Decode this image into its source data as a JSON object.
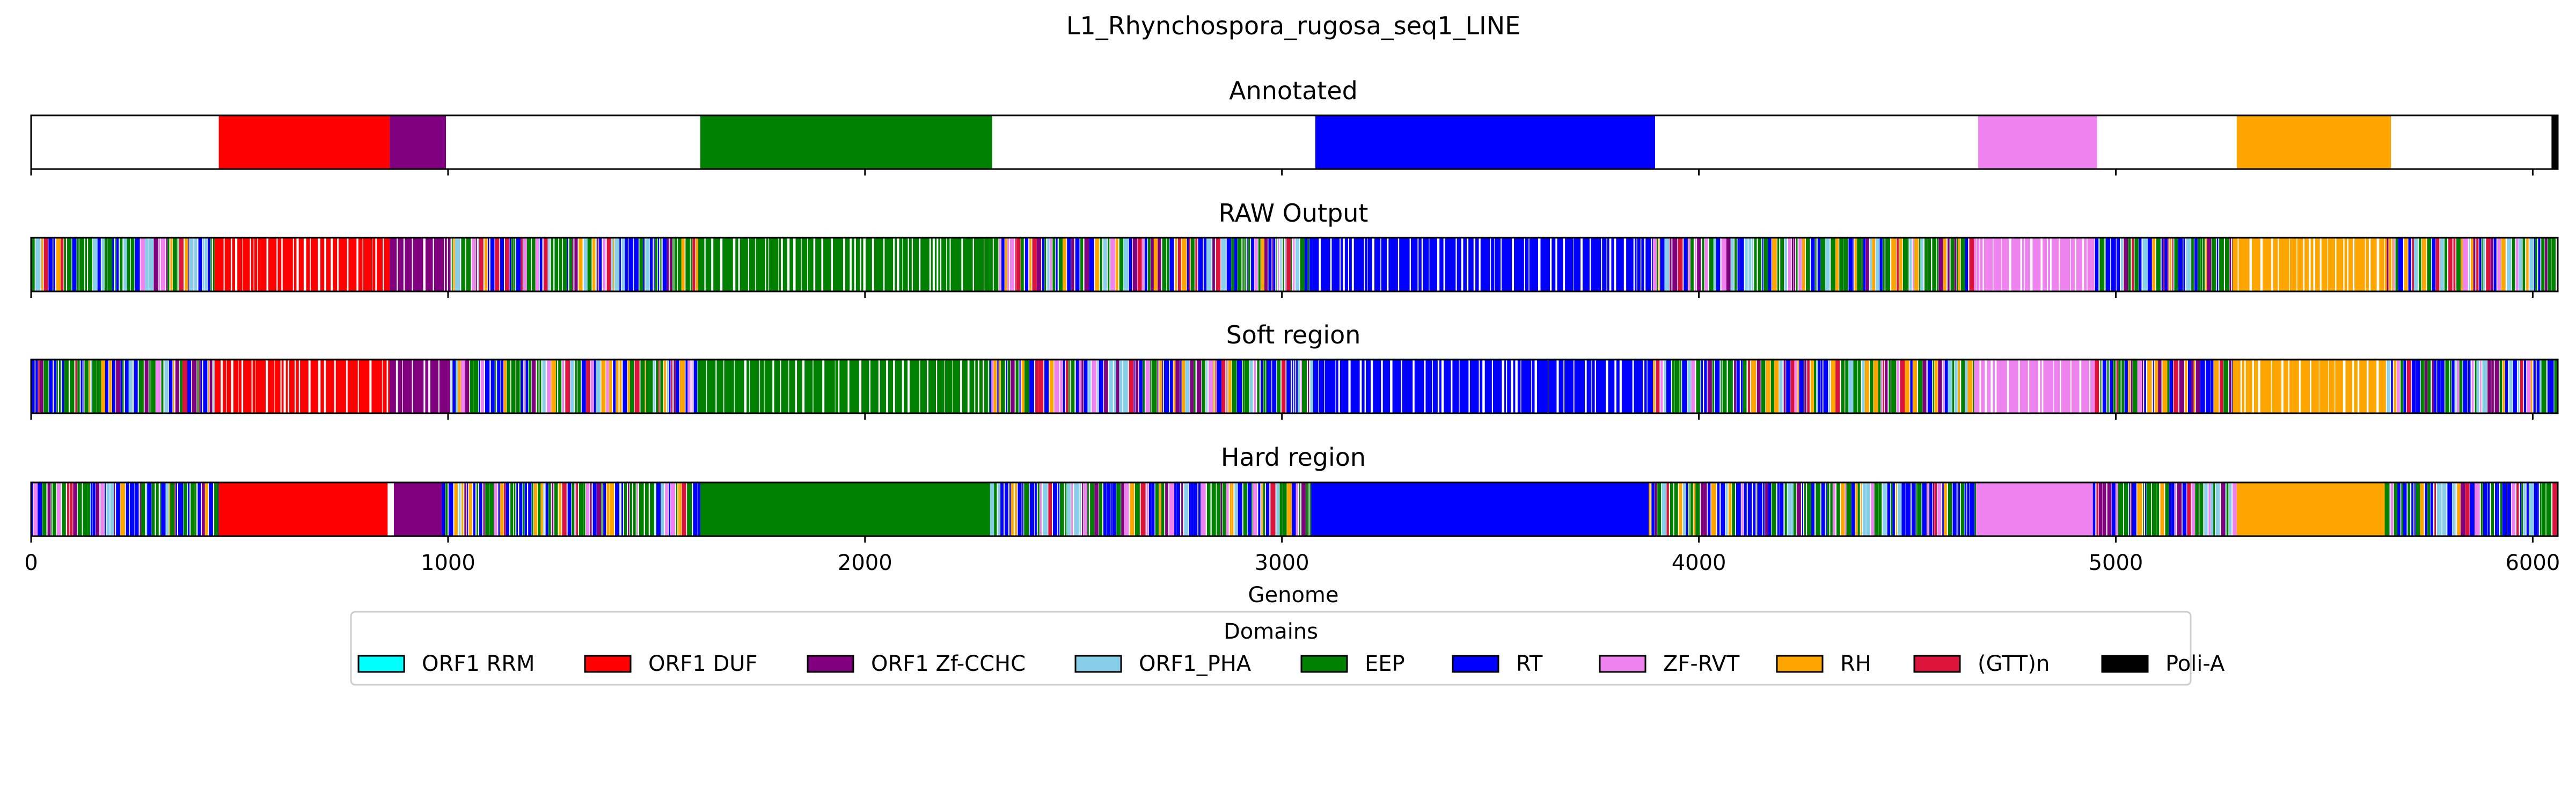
{
  "chart_data": {
    "type": "genome-track",
    "title": "L1_Rhynchospora_rugosa_seq1_LINE",
    "xlabel": "Genome",
    "xlim": [
      0,
      6060
    ],
    "xticks": [
      0,
      1000,
      2000,
      3000,
      4000,
      5000,
      6000
    ],
    "xtick_labels": [
      "0",
      "1000",
      "2000",
      "3000",
      "4000",
      "5000",
      "6000"
    ],
    "grid": false,
    "legend": {
      "title": "Domains",
      "placement": "bottom-center",
      "entries": [
        {
          "label": "ORF1 RRM",
          "color": "#00ffff"
        },
        {
          "label": "ORF1 DUF",
          "color": "#ff0000"
        },
        {
          "label": "ORF1 Zf-CCHC",
          "color": "#800080"
        },
        {
          "label": "ORF1_PHA",
          "color": "#87ceeb"
        },
        {
          "label": "EEP",
          "color": "#008000"
        },
        {
          "label": "RT",
          "color": "#0000ff"
        },
        {
          "label": "ZF-RVT",
          "color": "#ee82ee"
        },
        {
          "label": "RH",
          "color": "#ffa500"
        },
        {
          "label": "(GTT)n",
          "color": "#dc143c"
        },
        {
          "label": "Poli-A",
          "color": "#000000"
        }
      ]
    },
    "tracks": [
      {
        "title": "Annotated",
        "segments": [
          {
            "domain": "ORF1 DUF",
            "start": 450,
            "end": 860
          },
          {
            "domain": "ORF1 Zf-CCHC",
            "start": 860,
            "end": 995
          },
          {
            "domain": "EEP",
            "start": 1605,
            "end": 2305
          },
          {
            "domain": "RT",
            "start": 3080,
            "end": 3895
          },
          {
            "domain": "ZF-RVT",
            "start": 4670,
            "end": 4955
          },
          {
            "domain": "RH",
            "start": 5290,
            "end": 5660
          },
          {
            "domain": "Poli-A",
            "start": 6045,
            "end": 6060
          }
        ]
      },
      {
        "title": "RAW Output",
        "regions": [
          {
            "pattern": "mixed",
            "start": 0,
            "end": 440
          },
          {
            "pattern": "ORF1 DUF",
            "start": 440,
            "end": 860
          },
          {
            "pattern": "ORF1 Zf-CCHC",
            "start": 860,
            "end": 1000
          },
          {
            "pattern": "mixed",
            "start": 1000,
            "end": 1600
          },
          {
            "pattern": "EEP",
            "start": 1600,
            "end": 2300
          },
          {
            "pattern": "mixed",
            "start": 2300,
            "end": 3075
          },
          {
            "pattern": "RT",
            "start": 3075,
            "end": 3890
          },
          {
            "pattern": "mixed",
            "start": 3890,
            "end": 4660
          },
          {
            "pattern": "ZF-RVT",
            "start": 4660,
            "end": 4950
          },
          {
            "pattern": "mixed",
            "start": 4950,
            "end": 5280
          },
          {
            "pattern": "RH",
            "start": 5280,
            "end": 5650
          },
          {
            "pattern": "mixed",
            "start": 5650,
            "end": 6060
          }
        ]
      },
      {
        "title": "Soft region",
        "regions": [
          {
            "pattern": "mixed",
            "start": 0,
            "end": 440
          },
          {
            "pattern": "ORF1 DUF",
            "start": 440,
            "end": 860
          },
          {
            "pattern": "ORF1 Zf-CCHC",
            "start": 860,
            "end": 1000
          },
          {
            "pattern": "mixed",
            "start": 1000,
            "end": 1600
          },
          {
            "pattern": "EEP",
            "start": 1600,
            "end": 2300
          },
          {
            "pattern": "mixed",
            "start": 2300,
            "end": 3075
          },
          {
            "pattern": "RT",
            "start": 3075,
            "end": 3890
          },
          {
            "pattern": "mixed",
            "start": 3890,
            "end": 4660
          },
          {
            "pattern": "ZF-RVT",
            "start": 4660,
            "end": 4950
          },
          {
            "pattern": "mixed",
            "start": 4950,
            "end": 5280
          },
          {
            "pattern": "RH",
            "start": 5280,
            "end": 5650
          },
          {
            "pattern": "mixed",
            "start": 5650,
            "end": 6060
          }
        ]
      },
      {
        "title": "Hard region",
        "regions": [
          {
            "pattern": "mixed",
            "start": 0,
            "end": 450
          },
          {
            "pattern": "solid:ORF1 DUF",
            "start": 450,
            "end": 855
          },
          {
            "pattern": "solid:ORF1 Zf-CCHC",
            "start": 870,
            "end": 985
          },
          {
            "pattern": "mixed",
            "start": 985,
            "end": 1605
          },
          {
            "pattern": "solid:EEP",
            "start": 1605,
            "end": 2300
          },
          {
            "pattern": "mixed",
            "start": 2300,
            "end": 3070
          },
          {
            "pattern": "solid:RT",
            "start": 3070,
            "end": 3880
          },
          {
            "pattern": "mixed",
            "start": 3880,
            "end": 4665
          },
          {
            "pattern": "solid:ZF-RVT",
            "start": 4665,
            "end": 4945
          },
          {
            "pattern": "mixed",
            "start": 4945,
            "end": 5290
          },
          {
            "pattern": "solid:RH",
            "start": 5290,
            "end": 5645
          },
          {
            "pattern": "mixed",
            "start": 5645,
            "end": 6060
          }
        ]
      }
    ]
  }
}
